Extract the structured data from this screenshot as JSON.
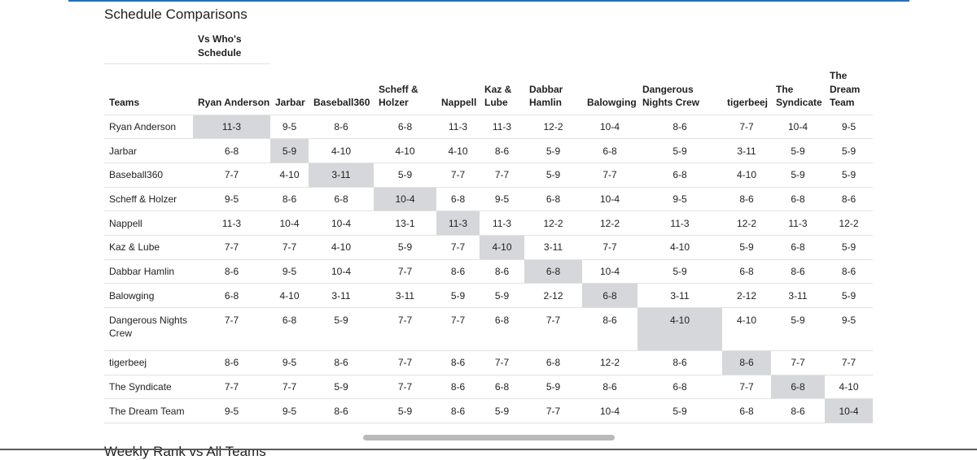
{
  "section_title": "Schedule Comparisons",
  "vs_header": "Vs Who's Schedule",
  "columns": [
    "Teams",
    "Ryan Anderson",
    "Jarbar",
    "Baseball360",
    "Scheff & Holzer",
    "Nappell",
    "Kaz & Lube",
    "Dabbar Hamlin",
    "Balowging",
    "Dangerous Nights Crew",
    "tigerbeej",
    "The Syndicate",
    "The Dream Team"
  ],
  "rows": [
    {
      "team": "Ryan Anderson",
      "values": [
        "11-3",
        "9-5",
        "8-6",
        "6-8",
        "11-3",
        "11-3",
        "12-2",
        "10-4",
        "8-6",
        "7-7",
        "10-4",
        "9-5"
      ]
    },
    {
      "team": "Jarbar",
      "values": [
        "6-8",
        "5-9",
        "4-10",
        "4-10",
        "4-10",
        "8-6",
        "5-9",
        "6-8",
        "5-9",
        "3-11",
        "5-9",
        "5-9"
      ]
    },
    {
      "team": "Baseball360",
      "values": [
        "7-7",
        "4-10",
        "3-11",
        "5-9",
        "7-7",
        "7-7",
        "5-9",
        "7-7",
        "6-8",
        "4-10",
        "5-9",
        "5-9"
      ]
    },
    {
      "team": "Scheff & Holzer",
      "values": [
        "9-5",
        "8-6",
        "6-8",
        "10-4",
        "6-8",
        "9-5",
        "6-8",
        "10-4",
        "9-5",
        "8-6",
        "6-8",
        "8-6"
      ]
    },
    {
      "team": "Nappell",
      "values": [
        "11-3",
        "10-4",
        "10-4",
        "13-1",
        "11-3",
        "11-3",
        "12-2",
        "12-2",
        "11-3",
        "12-2",
        "11-3",
        "12-2"
      ]
    },
    {
      "team": "Kaz & Lube",
      "values": [
        "7-7",
        "7-7",
        "4-10",
        "5-9",
        "7-7",
        "4-10",
        "3-11",
        "7-7",
        "4-10",
        "5-9",
        "6-8",
        "5-9"
      ]
    },
    {
      "team": "Dabbar Hamlin",
      "values": [
        "8-6",
        "9-5",
        "10-4",
        "7-7",
        "8-6",
        "8-6",
        "6-8",
        "10-4",
        "5-9",
        "6-8",
        "8-6",
        "8-6"
      ]
    },
    {
      "team": "Balowging",
      "values": [
        "6-8",
        "4-10",
        "3-11",
        "3-11",
        "5-9",
        "5-9",
        "2-12",
        "6-8",
        "3-11",
        "2-12",
        "3-11",
        "5-9"
      ]
    },
    {
      "team": "Dangerous Nights Crew",
      "values": [
        "7-7",
        "6-8",
        "5-9",
        "7-7",
        "7-7",
        "6-8",
        "7-7",
        "8-6",
        "4-10",
        "4-10",
        "5-9",
        "9-5"
      ]
    },
    {
      "team": "tigerbeej",
      "values": [
        "8-6",
        "9-5",
        "8-6",
        "7-7",
        "8-6",
        "7-7",
        "6-8",
        "12-2",
        "8-6",
        "8-6",
        "7-7",
        "7-7"
      ]
    },
    {
      "team": "The Syndicate",
      "values": [
        "7-7",
        "7-7",
        "5-9",
        "7-7",
        "8-6",
        "6-8",
        "5-9",
        "8-6",
        "6-8",
        "7-7",
        "6-8",
        "4-10"
      ]
    },
    {
      "team": "The Dream Team",
      "values": [
        "9-5",
        "9-5",
        "8-6",
        "5-9",
        "8-6",
        "5-9",
        "7-7",
        "10-4",
        "5-9",
        "6-8",
        "8-6",
        "10-4"
      ]
    }
  ],
  "next_section_partial": "Weekly Rank vs All Teams",
  "colors": {
    "accent": "#1a73c9",
    "diagonal_highlight": "#d5d7da",
    "grid": "#e2e2e2",
    "scrollbar": "#b9b9b9"
  }
}
